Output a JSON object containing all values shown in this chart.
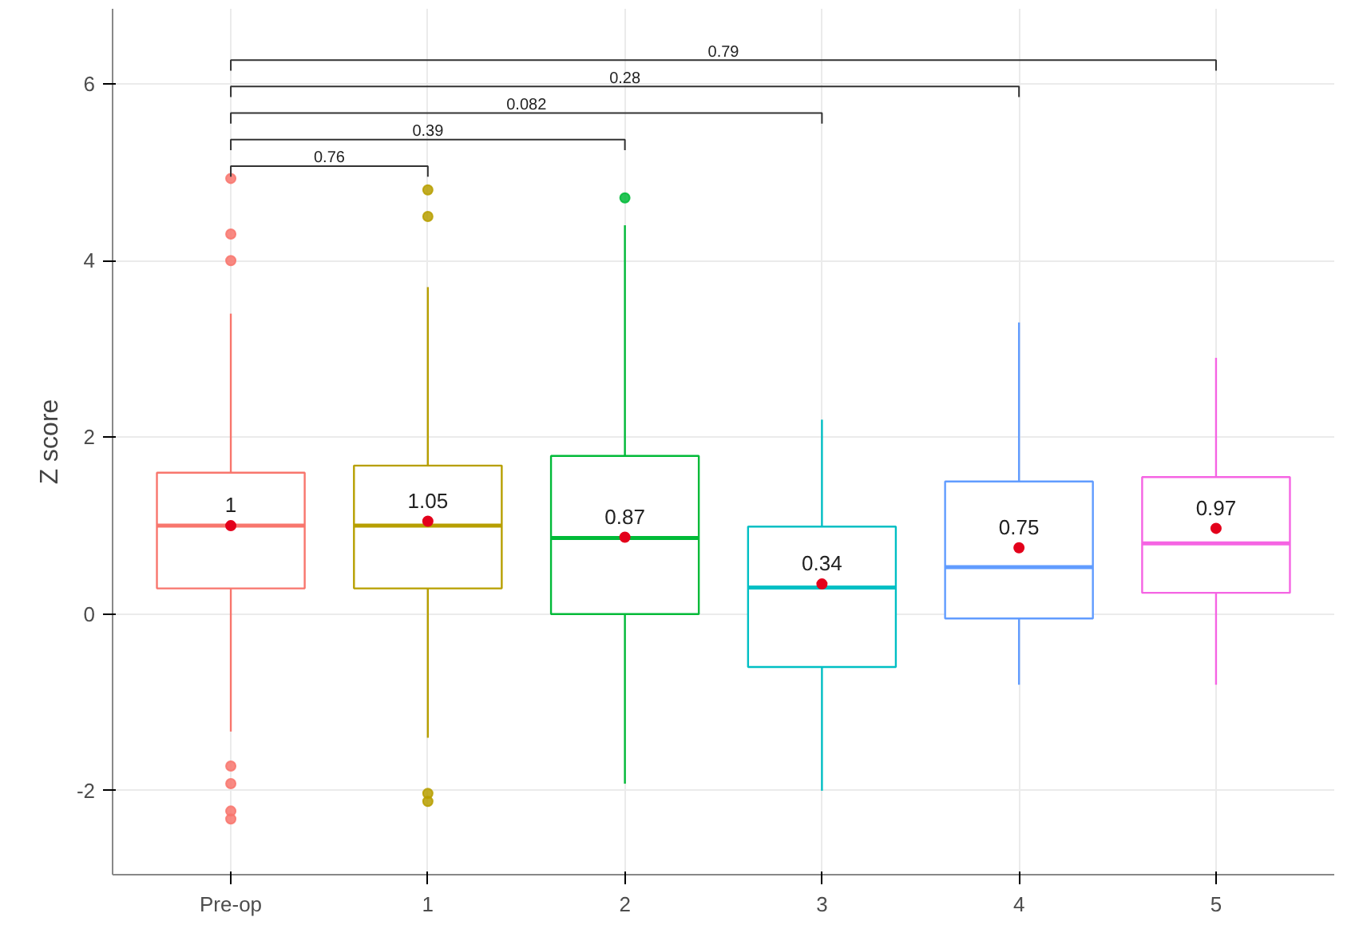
{
  "chart_data": {
    "type": "box",
    "ylabel": "Z score",
    "categories": [
      "Pre-op",
      "1",
      "2",
      "3",
      "4",
      "5"
    ],
    "colors": [
      "#f8766d",
      "#b79f00",
      "#00ba38",
      "#00bfc4",
      "#619cff",
      "#f564e3"
    ],
    "boxes": [
      {
        "low": -1.33,
        "q1": 0.29,
        "median": 1.0,
        "q3": 1.6,
        "high": 3.4,
        "mean": 1,
        "outliers": [
          4.93,
          4.3,
          4.0,
          -1.72,
          -1.92,
          -2.23,
          -2.32
        ]
      },
      {
        "low": -1.4,
        "q1": 0.29,
        "median": 1.0,
        "q3": 1.68,
        "high": 3.7,
        "mean": 1.05,
        "outliers": [
          4.8,
          4.5,
          -2.03,
          -2.12
        ]
      },
      {
        "low": -1.92,
        "q1": 0.0,
        "median": 0.86,
        "q3": 1.79,
        "high": 4.4,
        "mean": 0.87,
        "outliers": [
          4.71
        ]
      },
      {
        "low": -2.0,
        "q1": -0.6,
        "median": 0.3,
        "q3": 0.99,
        "high": 2.2,
        "mean": 0.34
      },
      {
        "low": -0.8,
        "q1": -0.05,
        "median": 0.53,
        "q3": 1.5,
        "high": 3.3,
        "mean": 0.75
      },
      {
        "low": -0.8,
        "q1": 0.24,
        "median": 0.8,
        "q3": 1.55,
        "high": 2.9,
        "mean": 0.97
      }
    ],
    "value_labels": [
      "1",
      "1.05",
      "0.87",
      "0.34",
      "0.75",
      "0.97"
    ],
    "annotations": [
      "0.76",
      "0.39",
      "0.082",
      "0.28",
      "0.79"
    ],
    "ylim": [
      -2.95,
      6.85
    ],
    "yticks": [
      -2,
      0,
      2,
      4,
      6
    ],
    "grid": true
  }
}
